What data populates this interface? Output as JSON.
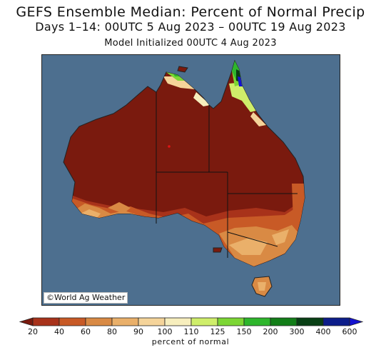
{
  "title_line1": "GEFS Ensemble Median: Percent of Normal Precip",
  "title_line2": "Days 1–14: 00UTC 5 Aug 2023 – 00UTC 19 Aug 2023",
  "title_line3": "Model Initialized 00UTC 4 Aug 2023",
  "credit": "©World Ag Weather",
  "colorbar": {
    "unit_label": "percent of normal",
    "tick_labels": [
      "20",
      "40",
      "60",
      "80",
      "90",
      "100",
      "110",
      "125",
      "150",
      "200",
      "300",
      "400",
      "600"
    ],
    "colors": [
      "#7a1a0e",
      "#a8321a",
      "#c85a26",
      "#d98a44",
      "#eab06a",
      "#f5d49a",
      "#f7eebd",
      "#cfee6a",
      "#7cd634",
      "#2eb62c",
      "#127e18",
      "#083f14",
      "#0c1d8a",
      "#1412d0"
    ]
  },
  "map": {
    "ocean_color": "#4d6f8f",
    "land_base_color": "#7a1a0e",
    "border_color": "#111111"
  }
}
